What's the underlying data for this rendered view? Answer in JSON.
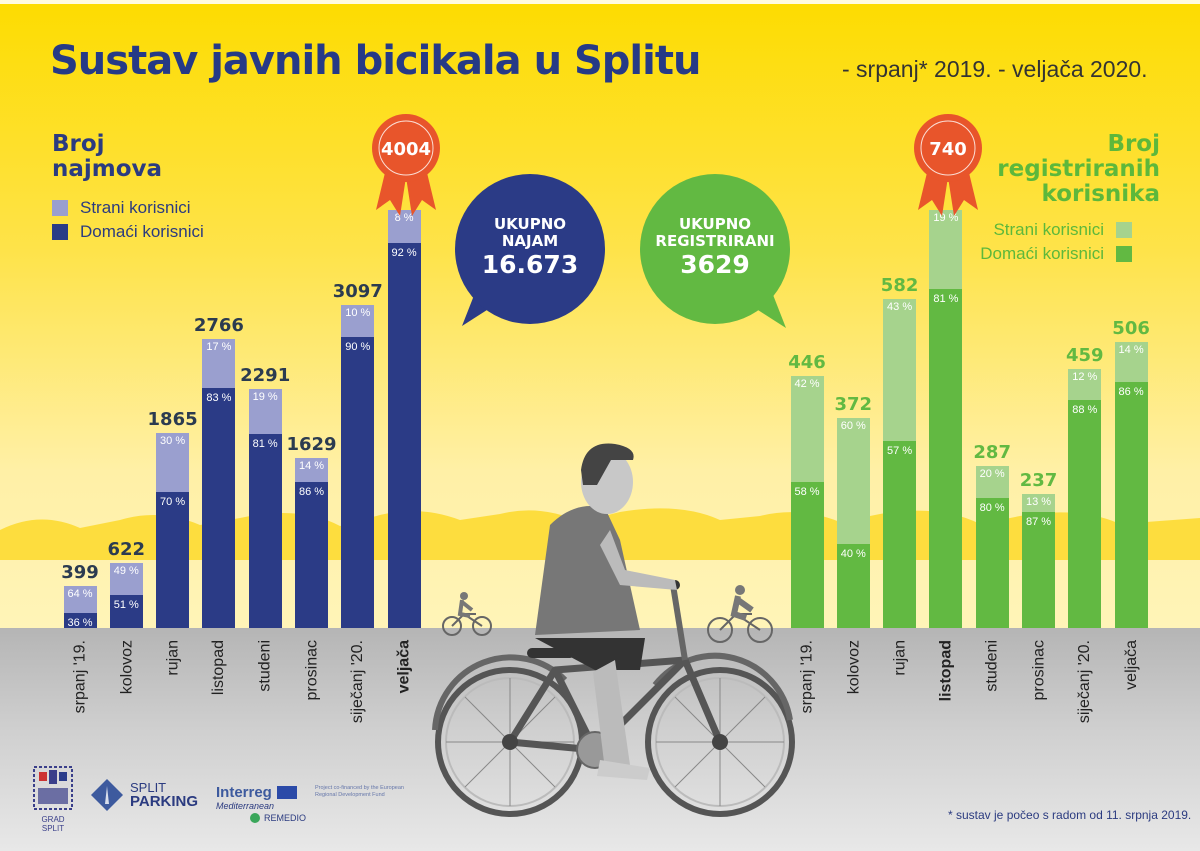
{
  "header": {
    "title": "Sustav javnih bicikala u Splitu",
    "subtitle": "- srpanj* 2019. - veljača 2020."
  },
  "colors": {
    "navy": "#2b3b86",
    "lavender": "#9a9fcf",
    "green": "#62b942",
    "light_green": "#a6d38d",
    "ribbon": "#e8552b",
    "sky": "#fddc00"
  },
  "left_section": {
    "title_line1": "Broj",
    "title_line2": "najmova",
    "legend": [
      {
        "label": "Strani korisnici",
        "color": "#9a9fcf"
      },
      {
        "label": "Domaći korisnici",
        "color": "#2b3b86"
      }
    ],
    "badge": "4004"
  },
  "right_section": {
    "title_line1": "Broj",
    "title_line2": "registriranih",
    "title_line3": "korisnika",
    "legend": [
      {
        "label": "Strani korisnici",
        "color": "#a6d38d"
      },
      {
        "label": "Domaći korisnici",
        "color": "#62b942"
      }
    ],
    "badge": "740"
  },
  "bubbles": {
    "rentals": {
      "label1": "UKUPNO",
      "label2": "NAJAM",
      "value": "16.673"
    },
    "registered": {
      "label1": "UKUPNO",
      "label2": "REGISTRIRANI",
      "value": "3629"
    }
  },
  "chart_data": [
    {
      "type": "bar",
      "stacked": true,
      "title": "Broj najmova",
      "categories": [
        "srpanj '19.",
        "kolovoz",
        "rujan",
        "listopad",
        "studeni",
        "prosinac",
        "siječanj '20.",
        "veljača"
      ],
      "highlight_category": "veljača",
      "totals": [
        399,
        622,
        1865,
        2766,
        2291,
        1629,
        3097,
        4004
      ],
      "series": [
        {
          "name": "Domaći korisnici",
          "percent": [
            36,
            51,
            70,
            83,
            81,
            86,
            90,
            92
          ]
        },
        {
          "name": "Strani korisnici",
          "percent": [
            64,
            49,
            30,
            17,
            19,
            14,
            10,
            8
          ]
        }
      ],
      "total_label": "UKUPNO NAJAM 16.673",
      "ylim": [
        0,
        4004
      ]
    },
    {
      "type": "bar",
      "stacked": true,
      "title": "Broj registriranih korisnika",
      "categories": [
        "srpanj '19.",
        "kolovoz",
        "rujan",
        "listopad",
        "studeni",
        "prosinac",
        "siječanj '20.",
        "veljača"
      ],
      "highlight_category": "listopad",
      "totals": [
        446,
        372,
        582,
        740,
        287,
        237,
        459,
        506
      ],
      "series": [
        {
          "name": "Domaći korisnici",
          "percent": [
            58,
            40,
            57,
            81,
            80,
            87,
            88,
            86
          ]
        },
        {
          "name": "Strani korisnici",
          "percent": [
            42,
            60,
            43,
            19,
            20,
            13,
            12,
            14
          ]
        }
      ],
      "total_label": "UKUPNO REGISTRIRANI 3629",
      "ylim": [
        0,
        740
      ]
    }
  ],
  "footer": {
    "footnote": "* sustav je počeo s radom od 11. srpnja 2019.",
    "logos": {
      "grad_split": "GRAD SPLIT",
      "split_parking_1": "SPLIT",
      "split_parking_2": "PARKING",
      "interreg": "Interreg",
      "mediterranean": "Mediterranean",
      "remedio": "REMEDIO",
      "eu_text": "Project co-financed by the European Regional Development Fund"
    }
  }
}
